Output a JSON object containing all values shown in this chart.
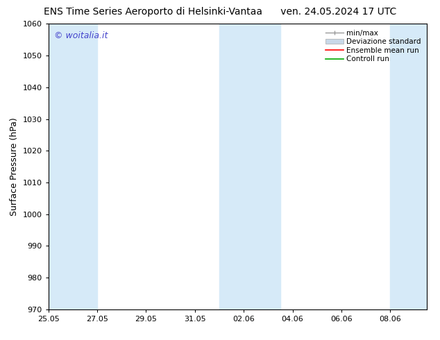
{
  "title": "ENS Time Series Aeroporto di Helsinki-Vantaa      ven. 24.05.2024 17 UTC",
  "ylabel": "Surface Pressure (hPa)",
  "ylim": [
    970,
    1060
  ],
  "yticks": [
    970,
    980,
    990,
    1000,
    1010,
    1020,
    1030,
    1040,
    1050,
    1060
  ],
  "xlim": [
    0,
    15.5
  ],
  "x_tick_positions": [
    0,
    2,
    4,
    6,
    8,
    10,
    12,
    14
  ],
  "xlabel_dates": [
    "25.05",
    "27.05",
    "29.05",
    "31.05",
    "02.06",
    "04.06",
    "06.06",
    "08.06"
  ],
  "watermark": "© woitalia.it",
  "watermark_color": "#4444cc",
  "bg_color": "#ffffff",
  "plot_bg_color": "#ffffff",
  "shaded_bands": [
    {
      "x_start": 0,
      "x_end": 2.0,
      "color": "#d6eaf8"
    },
    {
      "x_start": 7.0,
      "x_end": 9.5,
      "color": "#d6eaf8"
    },
    {
      "x_start": 14.0,
      "x_end": 15.5,
      "color": "#d6eaf8"
    }
  ],
  "legend_labels": [
    "min/max",
    "Deviazione standard",
    "Ensemble mean run",
    "Controll run"
  ],
  "legend_colors": [
    "#aaaaaa",
    "#c8d8e8",
    "#ff0000",
    "#00aa00"
  ],
  "title_fontsize": 10,
  "axis_label_fontsize": 9,
  "tick_fontsize": 8,
  "legend_fontsize": 7.5,
  "watermark_fontsize": 9
}
